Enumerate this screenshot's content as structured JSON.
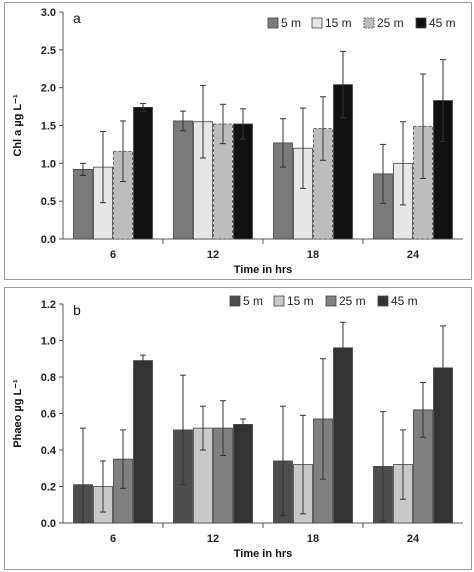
{
  "chart_data": [
    {
      "type": "bar",
      "panel": "a",
      "categories": [
        "6",
        "12",
        "18",
        "24"
      ],
      "series": [
        {
          "name": "5 m",
          "values": [
            0.92,
            1.56,
            1.27,
            0.86
          ],
          "errors": [
            0.08,
            0.13,
            0.32,
            0.39
          ]
        },
        {
          "name": "15 m",
          "values": [
            0.95,
            1.55,
            1.2,
            1.0
          ],
          "errors": [
            0.47,
            0.48,
            0.53,
            0.55
          ]
        },
        {
          "name": "25 m",
          "values": [
            1.16,
            1.52,
            1.46,
            1.49
          ],
          "errors": [
            0.4,
            0.26,
            0.42,
            0.69
          ]
        },
        {
          "name": "45 m",
          "values": [
            1.74,
            1.52,
            2.04,
            1.83
          ],
          "errors": [
            0.05,
            0.2,
            0.44,
            0.54
          ]
        }
      ],
      "xlabel": "Time in hrs",
      "ylabel": "Chl a µg L⁻¹",
      "ylim": [
        0,
        3.0
      ],
      "yticks": [
        "0.0",
        "0.5",
        "1.0",
        "1.5",
        "2.0",
        "2.5",
        "3.0"
      ],
      "legend_position": "top-right",
      "grid": false,
      "colors": [
        "#7a7a7a",
        "#e6e6e6",
        "#bdbdbd",
        "#111111"
      ]
    },
    {
      "type": "bar",
      "panel": "b",
      "categories": [
        "6",
        "12",
        "18",
        "24"
      ],
      "series": [
        {
          "name": "5 m",
          "values": [
            0.21,
            0.51,
            0.34,
            0.31
          ],
          "errors": [
            0.31,
            0.3,
            0.3,
            0.3
          ]
        },
        {
          "name": "15 m",
          "values": [
            0.2,
            0.52,
            0.32,
            0.32
          ],
          "errors": [
            0.14,
            0.12,
            0.27,
            0.19
          ]
        },
        {
          "name": "25 m",
          "values": [
            0.35,
            0.52,
            0.57,
            0.62
          ],
          "errors": [
            0.16,
            0.15,
            0.33,
            0.15
          ]
        },
        {
          "name": "45 m",
          "values": [
            0.89,
            0.54,
            0.96,
            0.85
          ],
          "errors": [
            0.03,
            0.03,
            0.14,
            0.23
          ]
        }
      ],
      "xlabel": "Time in hrs",
      "ylabel": "Phaeo µg L⁻¹",
      "ylim": [
        0,
        1.2
      ],
      "yticks": [
        "0.0",
        "0.2",
        "0.4",
        "0.6",
        "0.8",
        "1.0",
        "1.2"
      ],
      "legend_position": "top-right",
      "grid": false,
      "colors": [
        "#4d4d4d",
        "#c8c8c8",
        "#808080",
        "#333333"
      ]
    }
  ]
}
